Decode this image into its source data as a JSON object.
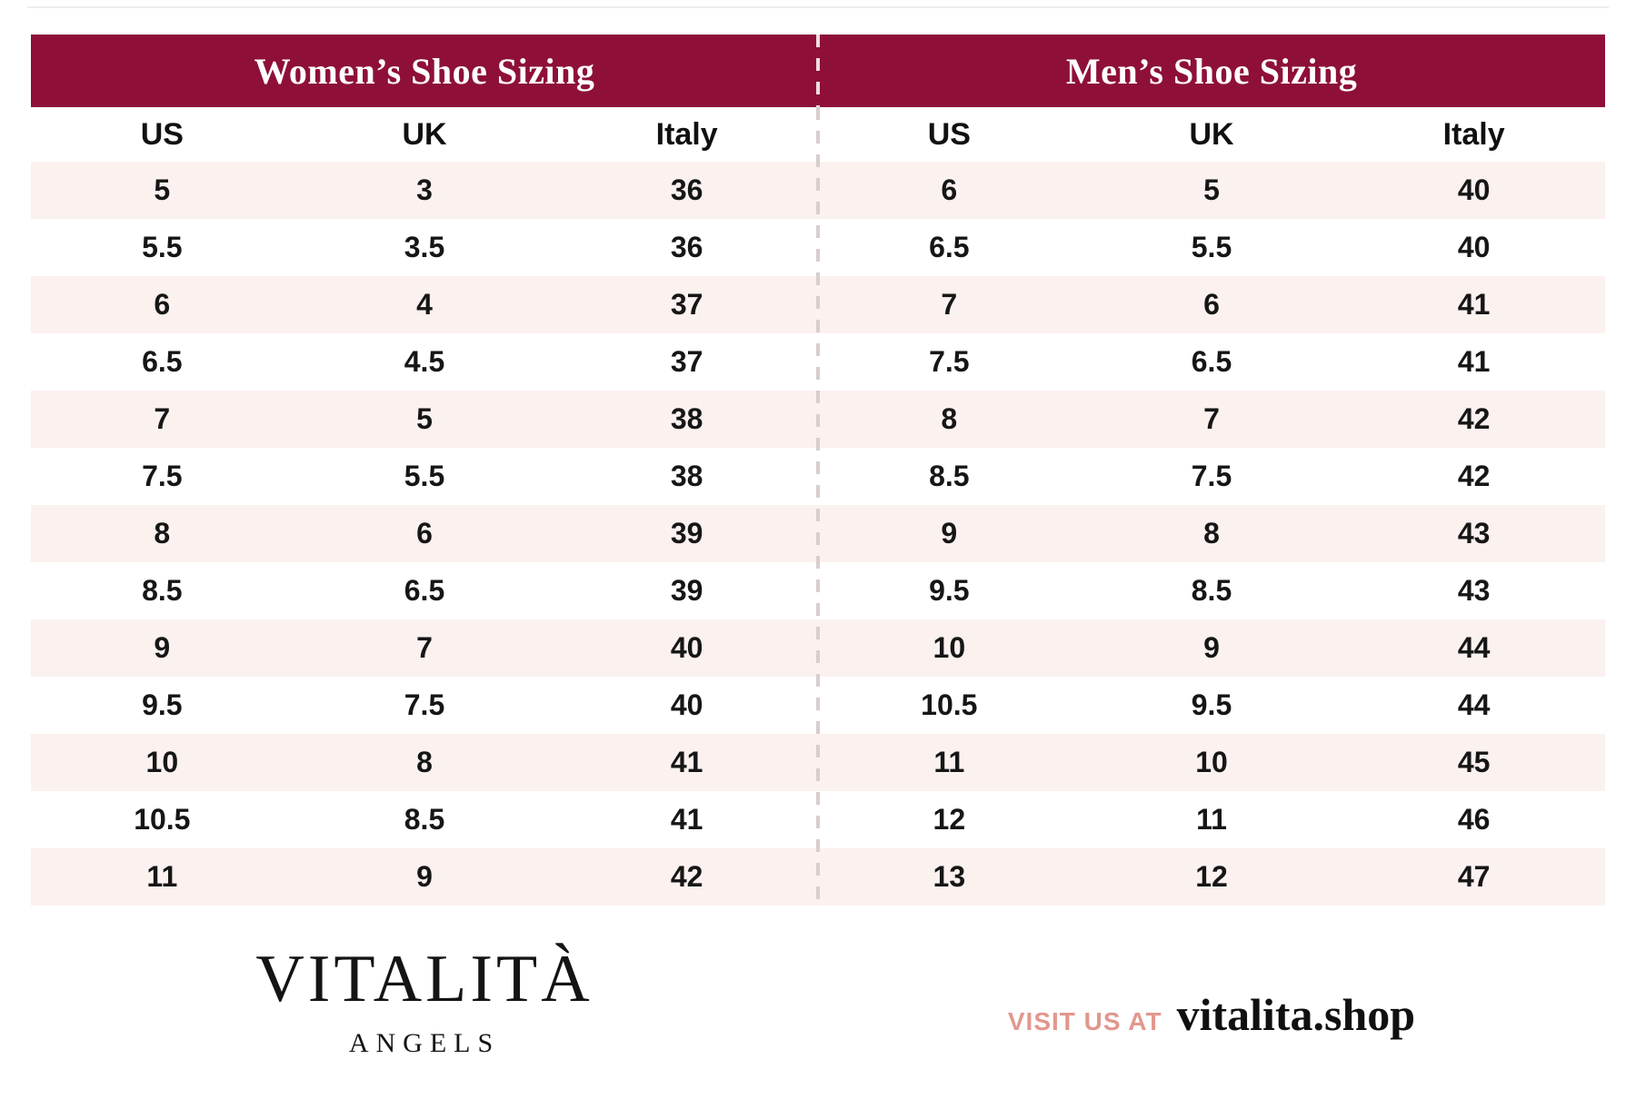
{
  "women": {
    "title": "Women’s Shoe Sizing",
    "columns": [
      "US",
      "UK",
      "Italy"
    ],
    "rows": [
      [
        "5",
        "3",
        "36"
      ],
      [
        "5.5",
        "3.5",
        "36"
      ],
      [
        "6",
        "4",
        "37"
      ],
      [
        "6.5",
        "4.5",
        "37"
      ],
      [
        "7",
        "5",
        "38"
      ],
      [
        "7.5",
        "5.5",
        "38"
      ],
      [
        "8",
        "6",
        "39"
      ],
      [
        "8.5",
        "6.5",
        "39"
      ],
      [
        "9",
        "7",
        "40"
      ],
      [
        "9.5",
        "7.5",
        "40"
      ],
      [
        "10",
        "8",
        "41"
      ],
      [
        "10.5",
        "8.5",
        "41"
      ],
      [
        "11",
        "9",
        "42"
      ]
    ]
  },
  "men": {
    "title": "Men’s Shoe Sizing",
    "columns": [
      "US",
      "UK",
      "Italy"
    ],
    "rows": [
      [
        "6",
        "5",
        "40"
      ],
      [
        "6.5",
        "5.5",
        "40"
      ],
      [
        "7",
        "6",
        "41"
      ],
      [
        "7.5",
        "6.5",
        "41"
      ],
      [
        "8",
        "7",
        "42"
      ],
      [
        "8.5",
        "7.5",
        "42"
      ],
      [
        "9",
        "8",
        "43"
      ],
      [
        "9.5",
        "8.5",
        "43"
      ],
      [
        "10",
        "9",
        "44"
      ],
      [
        "10.5",
        "9.5",
        "44"
      ],
      [
        "11",
        "10",
        "45"
      ],
      [
        "12",
        "11",
        "46"
      ],
      [
        "13",
        "12",
        "47"
      ]
    ]
  },
  "footer": {
    "brand_name": "VITALITÀ",
    "brand_subtitle": "ANGELS",
    "visit_label": "VISIT US AT",
    "visit_site": "vitalita.shop"
  },
  "colors": {
    "header_bg": "#8E1038",
    "header_text": "#FFFFFF",
    "row_alt_bg": "#FBF1EF",
    "body_text": "#161616",
    "divider_dash": "#D8CECC",
    "visit_label_color": "#E2978D"
  }
}
